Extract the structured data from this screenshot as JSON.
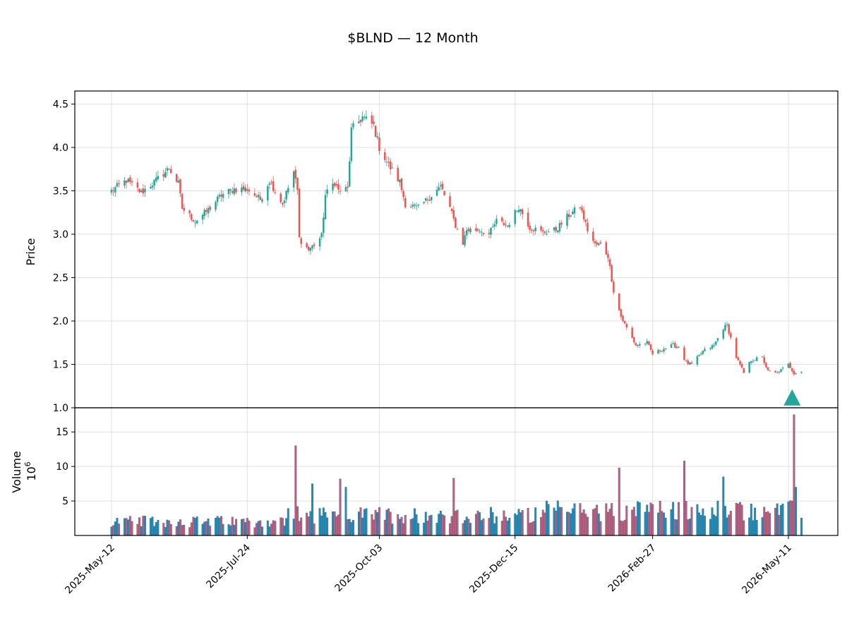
{
  "chart_data": {
    "type": "candlestick",
    "title": "$BLND — 12 Month",
    "price_panel": {
      "ylabel": "Price",
      "ylim": [
        1.0,
        4.65
      ],
      "yticks": [
        1.0,
        1.5,
        2.0,
        2.5,
        3.0,
        3.5,
        4.0,
        4.5
      ],
      "grid": true
    },
    "volume_panel": {
      "ylabel": "Volume",
      "multiplier": "10",
      "exponent": "6",
      "ylim": [
        0,
        18.5
      ],
      "yticks": [
        5,
        10,
        15
      ],
      "grid": true
    },
    "x_ticks": [
      "2025-May-12",
      "2025-Jul-24",
      "2025-Oct-03",
      "2025-Dec-15",
      "2026-Feb-27",
      "2026-May-11"
    ],
    "colors": {
      "up": "#26a69a",
      "down": "#ef5350",
      "volume_up": "#1f8fb5",
      "volume_down": "#c95c78",
      "marker": "#26a69a"
    },
    "marker": {
      "type": "triangle-up",
      "date": "2026-May-13",
      "price": 1.1
    },
    "anchors": [
      [
        "2025-May-12",
        3.5
      ],
      [
        "2025-May-20",
        3.62
      ],
      [
        "2025-May-28",
        3.48
      ],
      [
        "2025-Jun-05",
        3.62
      ],
      [
        "2025-Jun-12",
        3.76
      ],
      [
        "2025-Jun-17",
        3.58
      ],
      [
        "2025-Jun-19",
        3.3
      ],
      [
        "2025-Jun-26",
        3.15
      ],
      [
        "2025-Jul-03",
        3.28
      ],
      [
        "2025-Jul-10",
        3.45
      ],
      [
        "2025-Jul-17",
        3.52
      ],
      [
        "2025-Jul-24",
        3.52
      ],
      [
        "2025-Jul-31",
        3.4
      ],
      [
        "2025-Aug-05",
        3.62
      ],
      [
        "2025-Aug-12",
        3.35
      ],
      [
        "2025-Aug-18",
        3.72
      ],
      [
        "2025-Aug-20",
        3.5
      ],
      [
        "2025-Aug-21",
        2.95
      ],
      [
        "2025-Aug-26",
        2.82
      ],
      [
        "2025-Aug-29",
        2.88
      ],
      [
        "2025-Sep-02",
        2.98
      ],
      [
        "2025-Sep-04",
        3.45
      ],
      [
        "2025-Sep-09",
        3.6
      ],
      [
        "2025-Sep-11",
        3.5
      ],
      [
        "2025-Sep-16",
        3.52
      ],
      [
        "2025-Sep-18",
        4.2
      ],
      [
        "2025-Sep-24",
        4.35
      ],
      [
        "2025-Sep-30",
        4.25
      ],
      [
        "2025-Oct-03",
        4.0
      ],
      [
        "2025-Oct-08",
        3.8
      ],
      [
        "2025-Oct-14",
        3.6
      ],
      [
        "2025-Oct-17",
        3.35
      ],
      [
        "2025-Oct-24",
        3.3
      ],
      [
        "2025-Oct-31",
        3.45
      ],
      [
        "2025-Nov-05",
        3.55
      ],
      [
        "2025-Nov-10",
        3.3
      ],
      [
        "2025-Nov-13",
        3.1
      ],
      [
        "2025-Nov-17",
        2.9
      ],
      [
        "2025-Nov-19",
        3.05
      ],
      [
        "2025-Nov-26",
        3.05
      ],
      [
        "2025-Dec-01",
        3.0
      ],
      [
        "2025-Dec-05",
        3.15
      ],
      [
        "2025-Dec-11",
        3.1
      ],
      [
        "2025-Dec-17",
        3.32
      ],
      [
        "2025-Dec-23",
        3.08
      ],
      [
        "2025-Dec-30",
        3.02
      ],
      [
        "2026-Jan-06",
        3.05
      ],
      [
        "2026-Jan-13",
        3.22
      ],
      [
        "2026-Jan-19",
        3.32
      ],
      [
        "2026-Jan-23",
        3.05
      ],
      [
        "2026-Jan-27",
        2.88
      ],
      [
        "2026-Jan-30",
        2.88
      ],
      [
        "2026-Feb-03",
        2.75
      ],
      [
        "2026-Feb-06",
        2.35
      ],
      [
        "2026-Feb-10",
        2.05
      ],
      [
        "2026-Feb-13",
        1.92
      ],
      [
        "2026-Feb-18",
        1.72
      ],
      [
        "2026-Feb-24",
        1.75
      ],
      [
        "2026-Feb-27",
        1.62
      ],
      [
        "2026-Mar-05",
        1.68
      ],
      [
        "2026-Mar-10",
        1.72
      ],
      [
        "2026-Mar-13",
        1.7
      ],
      [
        "2026-Mar-17",
        1.52
      ],
      [
        "2026-Mar-20",
        1.5
      ],
      [
        "2026-Mar-26",
        1.65
      ],
      [
        "2026-Apr-01",
        1.72
      ],
      [
        "2026-Apr-06",
        1.92
      ],
      [
        "2026-Apr-08",
        1.95
      ],
      [
        "2026-Apr-13",
        1.58
      ],
      [
        "2026-Apr-17",
        1.4
      ],
      [
        "2026-Apr-21",
        1.55
      ],
      [
        "2026-Apr-27",
        1.58
      ],
      [
        "2026-Apr-30",
        1.42
      ],
      [
        "2026-May-05",
        1.4
      ],
      [
        "2026-May-11",
        1.5
      ],
      [
        "2026-May-14",
        1.4
      ],
      [
        "2026-May-18",
        1.42
      ]
    ],
    "volume_spikes": [
      [
        "2025-Aug-19",
        13.0
      ],
      [
        "2025-Aug-28",
        7.5
      ],
      [
        "2025-Sep-12",
        8.2
      ],
      [
        "2025-Sep-15",
        7.0
      ],
      [
        "2025-Nov-12",
        8.3
      ],
      [
        "2026-Feb-09",
        9.8
      ],
      [
        "2026-Mar-16",
        10.8
      ],
      [
        "2026-Apr-06",
        8.5
      ],
      [
        "2026-May-14",
        17.5
      ],
      [
        "2026-May-15",
        7.0
      ]
    ]
  }
}
